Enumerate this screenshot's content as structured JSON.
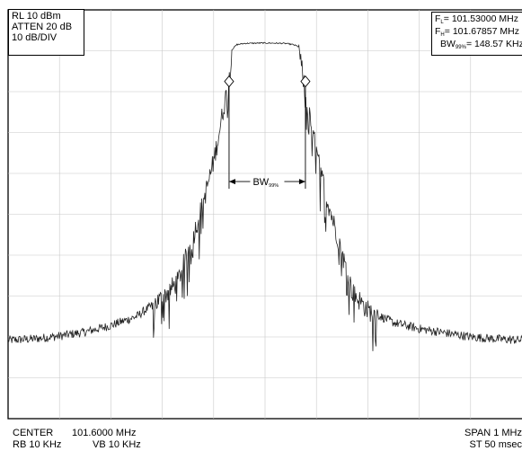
{
  "settings": {
    "ref_level": "RL  10  dBm",
    "atten": "ATTEN  20  dB",
    "scale": "10  dB/DIV"
  },
  "readout": {
    "fl_sym": "F",
    "fl_sub": "L",
    "fl_val": "= 101.53000  MHz",
    "fh_sym": "F",
    "fh_sub": "H",
    "fh_val": "= 101.67857  MHz",
    "bw_sym": "BW",
    "bw_sub": "99%",
    "bw_val": "= 148.57 KHz"
  },
  "footer": {
    "center_label": "CENTER",
    "center_value": "101.6000  MHz",
    "rbw": "RB 10 KHz",
    "vbw": "VB 10 KHz",
    "span": "SPAN 1 MHz",
    "sweep": "ST  50 msec"
  },
  "annotation": {
    "bw_label": "BW",
    "bw_sub": "99%"
  },
  "chart_data": {
    "type": "line",
    "xlabel": "",
    "ylabel": "",
    "x_unit": "MHz",
    "y_unit": "dBm",
    "xlim": [
      101.1,
      102.1
    ],
    "ylim": [
      -90,
      10
    ],
    "grid": true,
    "trace_color": "#222222",
    "series": [
      {
        "x": [
          101.1,
          101.15,
          101.2,
          101.25,
          101.3,
          101.35,
          101.4,
          101.43,
          101.46,
          101.48,
          101.5,
          101.51,
          101.52,
          101.53,
          101.535,
          101.545,
          101.56,
          101.6,
          101.64,
          101.655,
          101.665,
          101.675,
          101.68,
          101.69,
          101.7,
          101.72,
          101.74,
          101.77,
          101.8,
          101.85,
          101.9,
          101.95,
          102.0,
          102.05,
          102.1
        ],
        "y": [
          -70.8,
          -70.5,
          -69.8,
          -68.8,
          -67.2,
          -65.0,
          -60.5,
          -56.5,
          -45.5,
          -37.0,
          -27.0,
          -20.5,
          -13.5,
          -7.5,
          0.2,
          1.5,
          1.8,
          1.9,
          1.8,
          1.5,
          1.0,
          -7.5,
          -12.5,
          -18.0,
          -25.0,
          -36.0,
          -45.0,
          -59.0,
          -63.5,
          -66.5,
          -68.0,
          -69.0,
          -70.0,
          -70.5,
          -70.8
        ]
      }
    ],
    "markers": [
      {
        "x": 101.53,
        "y": -7.5
      },
      {
        "x": 101.67857,
        "y": -7.5
      }
    ]
  }
}
